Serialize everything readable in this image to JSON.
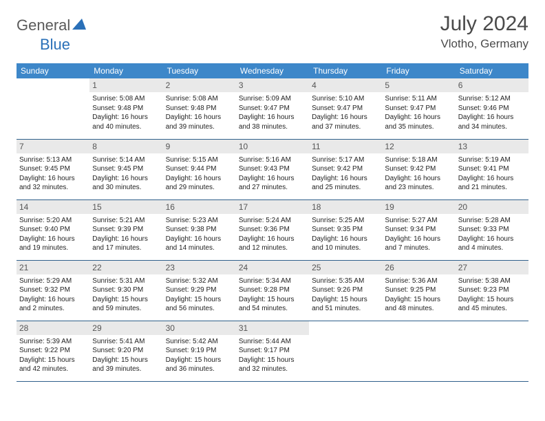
{
  "brand": {
    "part1": "General",
    "part2": "Blue"
  },
  "title": "July 2024",
  "location": "Vlotho, Germany",
  "colors": {
    "header_bg": "#3d87c9",
    "header_text": "#ffffff",
    "daynum_bg": "#e9e9e9",
    "row_border": "#2e5f8a",
    "brand_gray": "#5a5a5a",
    "brand_blue": "#2a70b8"
  },
  "weekdays": [
    "Sunday",
    "Monday",
    "Tuesday",
    "Wednesday",
    "Thursday",
    "Friday",
    "Saturday"
  ],
  "first_weekday_index": 1,
  "days": [
    {
      "n": 1,
      "sunrise": "5:08 AM",
      "sunset": "9:48 PM",
      "dl": "16 hours and 40 minutes."
    },
    {
      "n": 2,
      "sunrise": "5:08 AM",
      "sunset": "9:48 PM",
      "dl": "16 hours and 39 minutes."
    },
    {
      "n": 3,
      "sunrise": "5:09 AM",
      "sunset": "9:47 PM",
      "dl": "16 hours and 38 minutes."
    },
    {
      "n": 4,
      "sunrise": "5:10 AM",
      "sunset": "9:47 PM",
      "dl": "16 hours and 37 minutes."
    },
    {
      "n": 5,
      "sunrise": "5:11 AM",
      "sunset": "9:47 PM",
      "dl": "16 hours and 35 minutes."
    },
    {
      "n": 6,
      "sunrise": "5:12 AM",
      "sunset": "9:46 PM",
      "dl": "16 hours and 34 minutes."
    },
    {
      "n": 7,
      "sunrise": "5:13 AM",
      "sunset": "9:45 PM",
      "dl": "16 hours and 32 minutes."
    },
    {
      "n": 8,
      "sunrise": "5:14 AM",
      "sunset": "9:45 PM",
      "dl": "16 hours and 30 minutes."
    },
    {
      "n": 9,
      "sunrise": "5:15 AM",
      "sunset": "9:44 PM",
      "dl": "16 hours and 29 minutes."
    },
    {
      "n": 10,
      "sunrise": "5:16 AM",
      "sunset": "9:43 PM",
      "dl": "16 hours and 27 minutes."
    },
    {
      "n": 11,
      "sunrise": "5:17 AM",
      "sunset": "9:42 PM",
      "dl": "16 hours and 25 minutes."
    },
    {
      "n": 12,
      "sunrise": "5:18 AM",
      "sunset": "9:42 PM",
      "dl": "16 hours and 23 minutes."
    },
    {
      "n": 13,
      "sunrise": "5:19 AM",
      "sunset": "9:41 PM",
      "dl": "16 hours and 21 minutes."
    },
    {
      "n": 14,
      "sunrise": "5:20 AM",
      "sunset": "9:40 PM",
      "dl": "16 hours and 19 minutes."
    },
    {
      "n": 15,
      "sunrise": "5:21 AM",
      "sunset": "9:39 PM",
      "dl": "16 hours and 17 minutes."
    },
    {
      "n": 16,
      "sunrise": "5:23 AM",
      "sunset": "9:38 PM",
      "dl": "16 hours and 14 minutes."
    },
    {
      "n": 17,
      "sunrise": "5:24 AM",
      "sunset": "9:36 PM",
      "dl": "16 hours and 12 minutes."
    },
    {
      "n": 18,
      "sunrise": "5:25 AM",
      "sunset": "9:35 PM",
      "dl": "16 hours and 10 minutes."
    },
    {
      "n": 19,
      "sunrise": "5:27 AM",
      "sunset": "9:34 PM",
      "dl": "16 hours and 7 minutes."
    },
    {
      "n": 20,
      "sunrise": "5:28 AM",
      "sunset": "9:33 PM",
      "dl": "16 hours and 4 minutes."
    },
    {
      "n": 21,
      "sunrise": "5:29 AM",
      "sunset": "9:32 PM",
      "dl": "16 hours and 2 minutes."
    },
    {
      "n": 22,
      "sunrise": "5:31 AM",
      "sunset": "9:30 PM",
      "dl": "15 hours and 59 minutes."
    },
    {
      "n": 23,
      "sunrise": "5:32 AM",
      "sunset": "9:29 PM",
      "dl": "15 hours and 56 minutes."
    },
    {
      "n": 24,
      "sunrise": "5:34 AM",
      "sunset": "9:28 PM",
      "dl": "15 hours and 54 minutes."
    },
    {
      "n": 25,
      "sunrise": "5:35 AM",
      "sunset": "9:26 PM",
      "dl": "15 hours and 51 minutes."
    },
    {
      "n": 26,
      "sunrise": "5:36 AM",
      "sunset": "9:25 PM",
      "dl": "15 hours and 48 minutes."
    },
    {
      "n": 27,
      "sunrise": "5:38 AM",
      "sunset": "9:23 PM",
      "dl": "15 hours and 45 minutes."
    },
    {
      "n": 28,
      "sunrise": "5:39 AM",
      "sunset": "9:22 PM",
      "dl": "15 hours and 42 minutes."
    },
    {
      "n": 29,
      "sunrise": "5:41 AM",
      "sunset": "9:20 PM",
      "dl": "15 hours and 39 minutes."
    },
    {
      "n": 30,
      "sunrise": "5:42 AM",
      "sunset": "9:19 PM",
      "dl": "15 hours and 36 minutes."
    },
    {
      "n": 31,
      "sunrise": "5:44 AM",
      "sunset": "9:17 PM",
      "dl": "15 hours and 32 minutes."
    }
  ],
  "labels": {
    "sunrise": "Sunrise: ",
    "sunset": "Sunset: ",
    "daylight": "Daylight: "
  }
}
